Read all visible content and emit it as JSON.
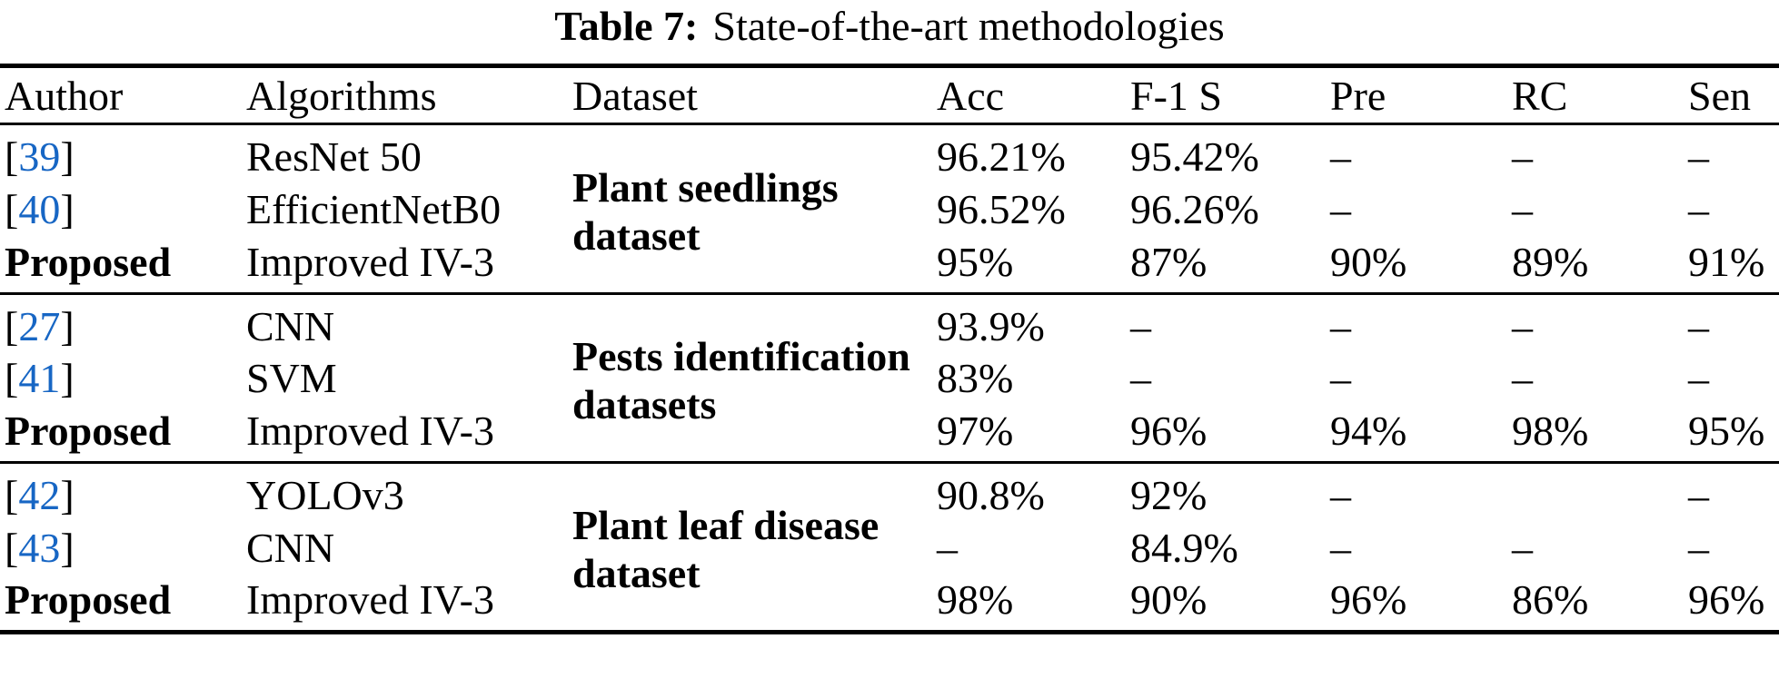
{
  "title": {
    "label": "Table 7:",
    "text": "State-of-the-art methodologies"
  },
  "columns": {
    "author": "Author",
    "algorithms": "Algorithms",
    "dataset": "Dataset",
    "acc": "Acc",
    "f1": "F-1 S",
    "pre": "Pre",
    "rc": "RC",
    "sen": "Sen"
  },
  "citation_brackets": {
    "open": "[",
    "close": "]"
  },
  "colors": {
    "citation_blue": "#1766C4",
    "text_black": "#000000"
  },
  "groups": [
    {
      "dataset": "Plant seedlings dataset",
      "rows": [
        {
          "ref": "39",
          "algorithm": "ResNet 50",
          "acc": "96.21%",
          "f1": "95.42%",
          "pre": "–",
          "rc": "–",
          "sen": "–"
        },
        {
          "ref": "40",
          "algorithm": "EfficientNetB0",
          "acc": "96.52%",
          "f1": "96.26%",
          "pre": "–",
          "rc": "–",
          "sen": "–"
        },
        {
          "label": "Proposed",
          "algorithm": "Improved IV-3",
          "acc": "95%",
          "f1": "87%",
          "pre": "90%",
          "rc": "89%",
          "sen": "91%"
        }
      ]
    },
    {
      "dataset": "Pests identification datasets",
      "rows": [
        {
          "ref": "27",
          "algorithm": "CNN",
          "acc": "93.9%",
          "f1": "–",
          "pre": "–",
          "rc": "–",
          "sen": "–"
        },
        {
          "ref": "41",
          "algorithm": "SVM",
          "acc": "83%",
          "f1": "–",
          "pre": "–",
          "rc": "–",
          "sen": "–"
        },
        {
          "label": "Proposed",
          "algorithm": "Improved IV-3",
          "acc": "97%",
          "f1": "96%",
          "pre": "94%",
          "rc": "98%",
          "sen": "95%"
        }
      ]
    },
    {
      "dataset": "Plant leaf disease dataset",
      "rows": [
        {
          "ref": "42",
          "algorithm": "YOLOv3",
          "acc": "90.8%",
          "f1": "92%",
          "pre": "–",
          "rc": "",
          "sen": "–"
        },
        {
          "ref": "43",
          "algorithm": "CNN",
          "acc": "–",
          "f1": "84.9%",
          "pre": "–",
          "rc": "–",
          "sen": "–"
        },
        {
          "label": "Proposed",
          "algorithm": "Improved IV-3",
          "acc": "98%",
          "f1": "90%",
          "pre": "96%",
          "rc": "86%",
          "sen": "96%"
        }
      ]
    }
  ]
}
